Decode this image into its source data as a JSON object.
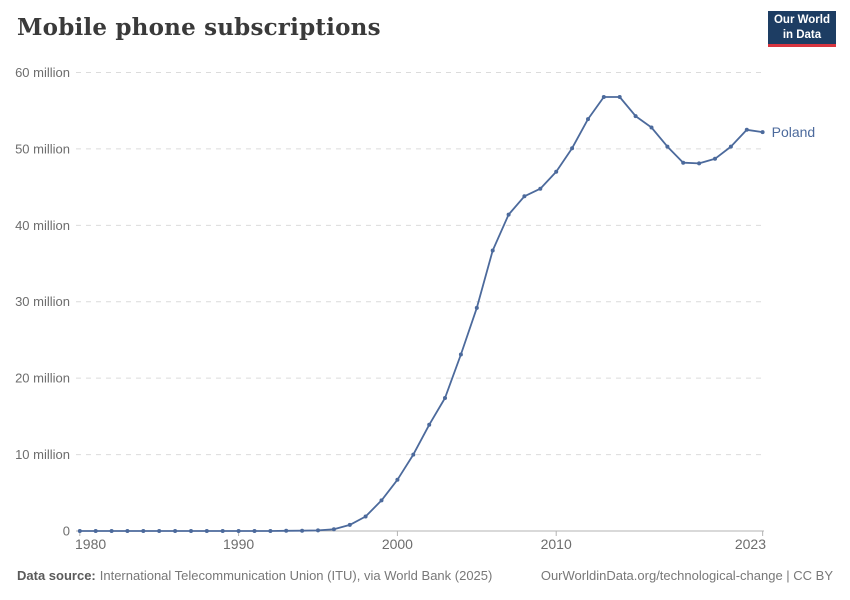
{
  "header": {
    "title": "Mobile phone subscriptions"
  },
  "logo": {
    "line1": "Our World",
    "line2": "in Data",
    "bg_color": "#1d3d63",
    "accent_color": "#d8353f"
  },
  "chart_data": {
    "type": "line",
    "title": "Mobile phone subscriptions",
    "unit": "million subscriptions",
    "grid": "horizontal dashed",
    "legend_position": "end-of-line label",
    "line_color": "#4C6A9C",
    "ylim": [
      0,
      60
    ],
    "xlim": [
      1980,
      2023
    ],
    "yticks": [
      {
        "value": 0,
        "label": "0"
      },
      {
        "value": 10,
        "label": "10 million"
      },
      {
        "value": 20,
        "label": "20 million"
      },
      {
        "value": 30,
        "label": "30 million"
      },
      {
        "value": 40,
        "label": "40 million"
      },
      {
        "value": 50,
        "label": "50 million"
      },
      {
        "value": 60,
        "label": "60 million"
      }
    ],
    "xticks": [
      {
        "value": 1980,
        "label": "1980"
      },
      {
        "value": 1990,
        "label": "1990"
      },
      {
        "value": 2000,
        "label": "2000"
      },
      {
        "value": 2010,
        "label": "2010"
      },
      {
        "value": 2023,
        "label": "2023"
      }
    ],
    "x": [
      1980,
      1981,
      1982,
      1983,
      1984,
      1985,
      1986,
      1987,
      1988,
      1989,
      1990,
      1991,
      1992,
      1993,
      1994,
      1995,
      1996,
      1997,
      1998,
      1999,
      2000,
      2001,
      2002,
      2003,
      2004,
      2005,
      2006,
      2007,
      2008,
      2009,
      2010,
      2011,
      2012,
      2013,
      2014,
      2015,
      2016,
      2017,
      2018,
      2019,
      2020,
      2021,
      2022,
      2023
    ],
    "series": [
      {
        "name": "Poland",
        "color": "#4C6A9C",
        "values": [
          0,
          0,
          0,
          0,
          0,
          0,
          0,
          0,
          0,
          0,
          0,
          0,
          0.004,
          0.02,
          0.04,
          0.08,
          0.22,
          0.8,
          1.9,
          4.0,
          6.7,
          10.0,
          13.9,
          17.4,
          23.1,
          29.2,
          36.7,
          41.4,
          43.8,
          44.8,
          47.0,
          50.1,
          53.9,
          56.8,
          56.8,
          54.3,
          52.8,
          50.3,
          48.2,
          48.1,
          48.7,
          50.3,
          52.5,
          52.2
        ]
      }
    ]
  },
  "footer": {
    "datasource_label": "Data source:",
    "datasource_text": "International Telecommunication Union (ITU), via World Bank (2025)",
    "note_right": "OurWorldinData.org/technological-change | CC BY"
  }
}
